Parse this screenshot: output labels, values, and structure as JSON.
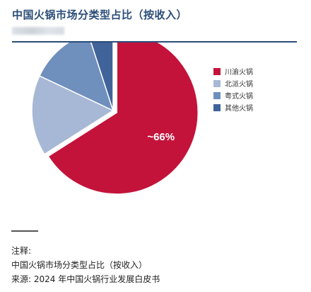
{
  "header": {
    "title": "中国火锅市场分类型占比（按收入）"
  },
  "notes": {
    "label": "注释:",
    "line1": "中国火锅市场分类型占比（按收入）",
    "line2": "来源: 2024 年中国火锅行业发展白皮书"
  },
  "chart_data": {
    "type": "pie",
    "categories": [
      "川渝火锅",
      "北派火锅",
      "粤式火锅",
      "其他火锅"
    ],
    "values": [
      66,
      16,
      13,
      5
    ],
    "colors": [
      "#c4133b",
      "#a7b8d6",
      "#6f8fbd",
      "#40639a"
    ],
    "data_labels": [
      "~66%",
      "",
      "",
      ""
    ],
    "exploded": "川渝火锅",
    "legend_position": "right"
  }
}
